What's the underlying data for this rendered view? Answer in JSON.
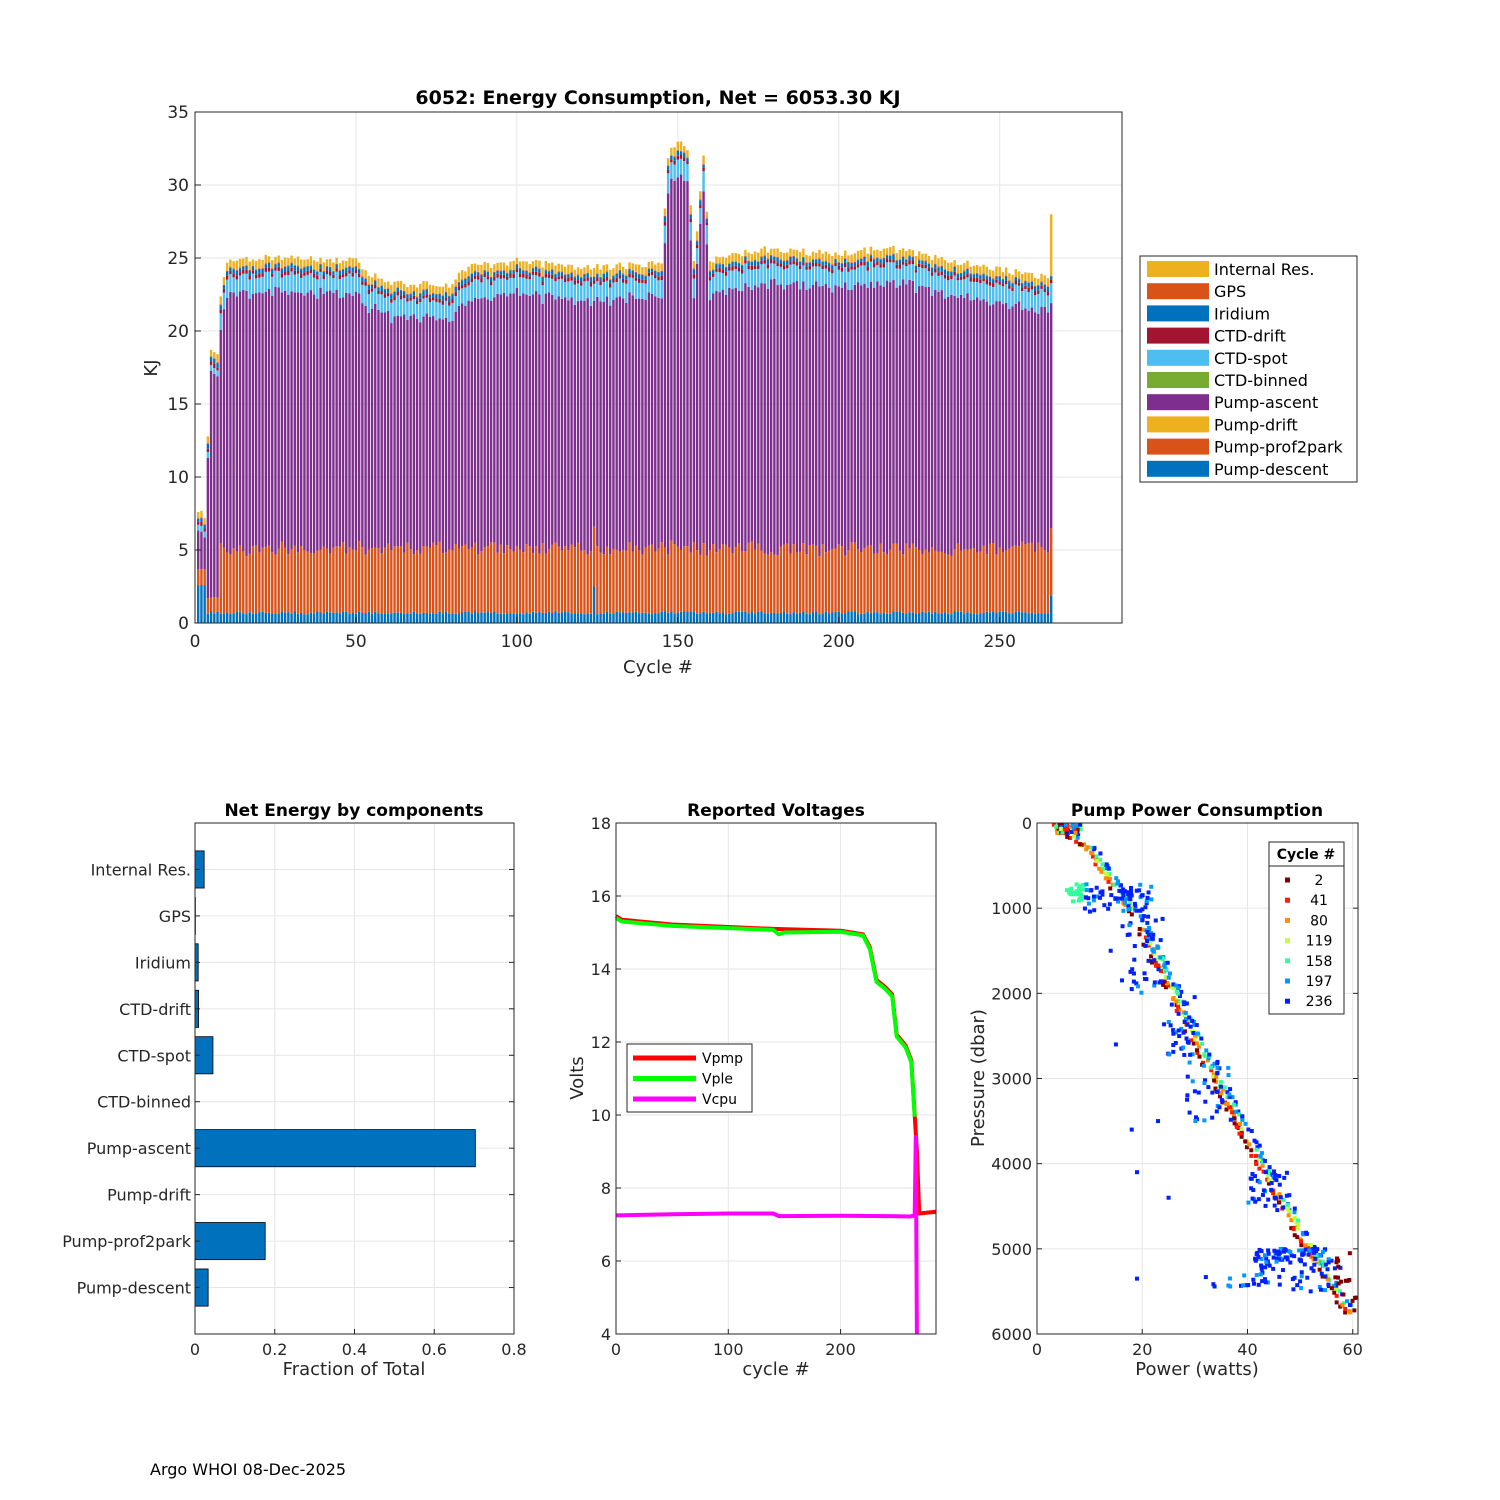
{
  "footer": "Argo WHOI 08-Dec-2025",
  "chart_data": [
    {
      "id": "energy",
      "type": "bar",
      "stacked": true,
      "title": "6052: Energy Consumption,  Net = 6053.30 KJ",
      "xlabel": "Cycle #",
      "ylabel": "KJ",
      "xlim": [
        0,
        288
      ],
      "ylim": [
        0,
        35
      ],
      "xticks": [
        0,
        50,
        100,
        150,
        200,
        250
      ],
      "yticks": [
        0,
        5,
        10,
        15,
        20,
        25,
        30,
        35
      ],
      "grid": true,
      "legend_position": "right",
      "cycles": [
        1,
        266
      ],
      "components": [
        {
          "name": "Pump-descent",
          "color": "#0072BD",
          "typical": 0.7,
          "first_cycles": 2.6,
          "last_cycle": 1.9
        },
        {
          "name": "Pump-prof2park",
          "color": "#D95319",
          "typical": 4.4
        },
        {
          "name": "Pump-drift",
          "color": "#EDB120",
          "typical": 0
        },
        {
          "name": "Pump-ascent",
          "color": "#7E2F8E",
          "typical": 17.8
        },
        {
          "name": "CTD-binned",
          "color": "#77AC30",
          "typical": 0
        },
        {
          "name": "CTD-spot",
          "color": "#4DBEEE",
          "typical": 1.2
        },
        {
          "name": "CTD-drift",
          "color": "#A2142F",
          "typical": 0.25
        },
        {
          "name": "Iridium",
          "color": "#0072BD",
          "typical": 0.25
        },
        {
          "name": "GPS",
          "color": "#D95319",
          "typical": 0.05
        },
        {
          "name": "Internal Res.",
          "color": "#EDB120",
          "typical": 0.5
        }
      ],
      "totals_profile": [
        [
          1,
          7.8
        ],
        [
          3,
          7.3
        ],
        [
          5,
          18.5
        ],
        [
          7,
          18.2
        ],
        [
          8,
          22.5
        ],
        [
          10,
          24.9
        ],
        [
          30,
          25.1
        ],
        [
          50,
          24.8
        ],
        [
          55,
          23.8
        ],
        [
          60,
          23.3
        ],
        [
          80,
          23.1
        ],
        [
          83,
          24.3
        ],
        [
          100,
          24.8
        ],
        [
          120,
          24.3
        ],
        [
          145,
          24.6
        ],
        [
          147,
          32.0
        ],
        [
          150,
          33.0
        ],
        [
          153,
          32.2
        ],
        [
          155,
          24.6
        ],
        [
          158,
          32.0
        ],
        [
          160,
          24.8
        ],
        [
          175,
          25.6
        ],
        [
          200,
          25.3
        ],
        [
          215,
          25.7
        ],
        [
          240,
          24.6
        ],
        [
          260,
          23.8
        ],
        [
          265,
          23.8
        ],
        [
          266,
          28.2
        ]
      ]
    },
    {
      "id": "components",
      "type": "bar",
      "orientation": "horizontal",
      "title": "Net Energy by components",
      "xlabel": "Fraction of Total",
      "xlim": [
        0,
        0.8
      ],
      "xticks": [
        0,
        0.2,
        0.4,
        0.6,
        0.8
      ],
      "xtick_labels": [
        "0",
        "0.2",
        "0.4",
        "0.6",
        "0.8"
      ],
      "color": "#0072BD",
      "categories": [
        "Internal Res.",
        "GPS",
        "Iridium",
        "CTD-drift",
        "CTD-spot",
        "CTD-binned",
        "Pump-ascent",
        "Pump-drift",
        "Pump-prof2park",
        "Pump-descent"
      ],
      "values": [
        0.023,
        0.001,
        0.008,
        0.009,
        0.045,
        0.0,
        0.703,
        0.0,
        0.176,
        0.033
      ]
    },
    {
      "id": "voltages",
      "type": "line",
      "title": "Reported Voltages",
      "xlabel": "cycle #",
      "ylabel": "Volts",
      "xlim": [
        0,
        285
      ],
      "ylim": [
        4,
        18
      ],
      "xticks": [
        0,
        100,
        200
      ],
      "yticks": [
        4,
        6,
        8,
        10,
        12,
        14,
        16,
        18
      ],
      "legend_position": "middle-left",
      "series": [
        {
          "name": "Vpmp",
          "color": "#FF0000",
          "points": [
            [
              0,
              15.45
            ],
            [
              5,
              15.35
            ],
            [
              50,
              15.22
            ],
            [
              100,
              15.15
            ],
            [
              140,
              15.1
            ],
            [
              200,
              15.05
            ],
            [
              220,
              14.95
            ],
            [
              226,
              14.6
            ],
            [
              232,
              13.7
            ],
            [
              240,
              13.5
            ],
            [
              246,
              13.3
            ],
            [
              250,
              12.2
            ],
            [
              258,
              11.9
            ],
            [
              263,
              11.5
            ],
            [
              266,
              10.0
            ],
            [
              268,
              9.0
            ],
            [
              270,
              7.3
            ],
            [
              285,
              7.35
            ]
          ]
        },
        {
          "name": "Vple",
          "color": "#00FF00",
          "points": [
            [
              0,
              15.4
            ],
            [
              5,
              15.3
            ],
            [
              50,
              15.18
            ],
            [
              100,
              15.12
            ],
            [
              140,
              15.07
            ],
            [
              145,
              14.95
            ],
            [
              150,
              15.0
            ],
            [
              200,
              15.02
            ],
            [
              220,
              14.92
            ],
            [
              226,
              14.55
            ],
            [
              232,
              13.65
            ],
            [
              240,
              13.45
            ],
            [
              246,
              13.25
            ],
            [
              250,
              12.15
            ],
            [
              258,
              11.85
            ],
            [
              263,
              11.45
            ],
            [
              266,
              9.95
            ]
          ]
        },
        {
          "name": "Vcpu",
          "color": "#FF00FF",
          "points": [
            [
              0,
              7.25
            ],
            [
              50,
              7.28
            ],
            [
              100,
              7.3
            ],
            [
              140,
              7.3
            ],
            [
              145,
              7.23
            ],
            [
              200,
              7.24
            ],
            [
              240,
              7.23
            ],
            [
              262,
              7.22
            ],
            [
              266,
              7.25
            ],
            [
              267,
              9.4
            ],
            [
              268,
              4.0
            ]
          ]
        }
      ]
    },
    {
      "id": "pump_power",
      "type": "scatter",
      "title": "Pump Power Consumption",
      "xlabel": "Power (watts)",
      "ylabel": "Pressure (dbar)",
      "xlim": [
        0,
        61
      ],
      "ylim": [
        0,
        6000
      ],
      "y_reversed": true,
      "xticks": [
        0,
        20,
        40,
        60
      ],
      "yticks": [
        0,
        1000,
        2000,
        3000,
        4000,
        5000,
        6000
      ],
      "legend_title": "Cycle #",
      "legend_position": "top-right",
      "series": [
        {
          "name": "2",
          "color": "#800000"
        },
        {
          "name": "41",
          "color": "#FF1A00"
        },
        {
          "name": "80",
          "color": "#FF8C00"
        },
        {
          "name": "119",
          "color": "#BFFF40"
        },
        {
          "name": "158",
          "color": "#33FF99"
        },
        {
          "name": "197",
          "color": "#0099FF"
        },
        {
          "name": "236",
          "color": "#0020FF"
        }
      ],
      "main_trend": [
        [
          3.5,
          0
        ],
        [
          10,
          300
        ],
        [
          20,
          1200
        ],
        [
          30,
          2500
        ],
        [
          40,
          3700
        ],
        [
          50,
          4800
        ],
        [
          60,
          5800
        ]
      ]
    }
  ]
}
